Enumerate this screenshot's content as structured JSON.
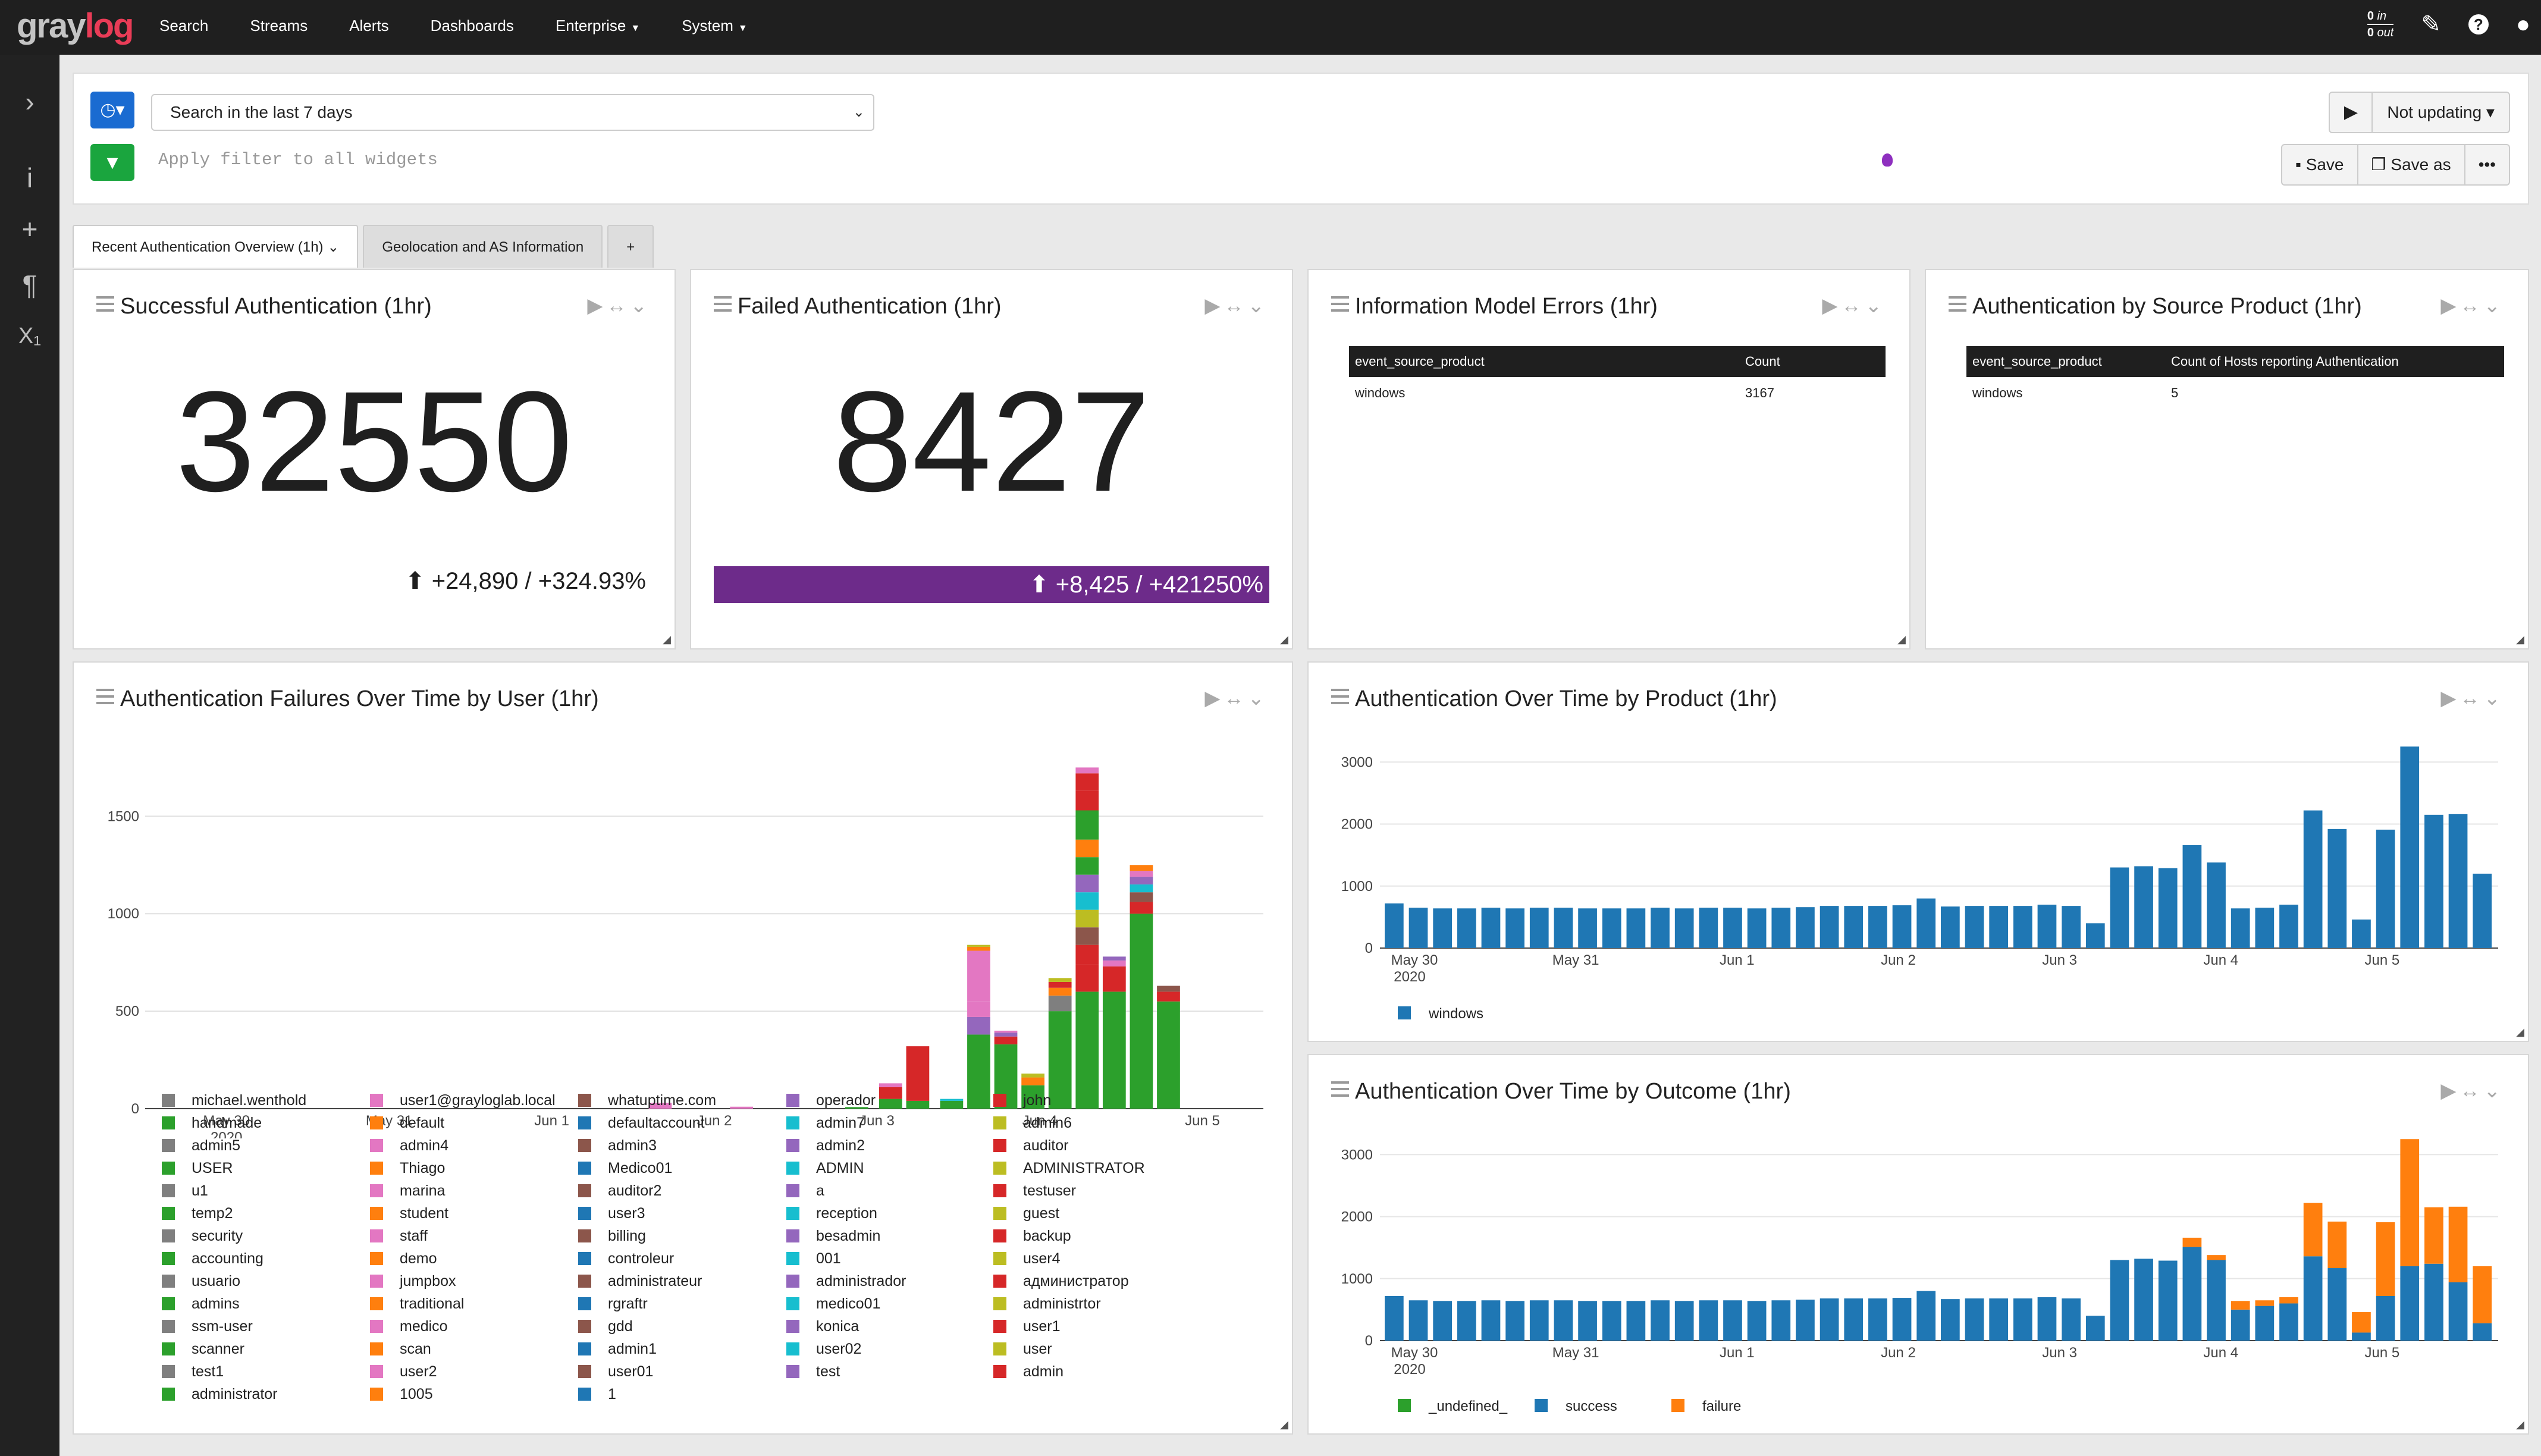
{
  "nav": {
    "logo_a": "gray",
    "logo_b": "log",
    "items": [
      "Search",
      "Streams",
      "Alerts",
      "Dashboards",
      "Enterprise",
      "System"
    ],
    "tput_in_val": "0",
    "tput_in": "in",
    "tput_out_val": "0",
    "tput_out": "out"
  },
  "search": {
    "time_range": "Search in the last 7 days",
    "filter_placeholder": "Apply filter to all widgets",
    "refresh": "Not updating",
    "save": "Save",
    "save_as": "Save as",
    "more": "•••"
  },
  "tabs": [
    "Recent Authentication Overview (1h)",
    "Geolocation and AS Information",
    "+"
  ],
  "widgets": {
    "w1": {
      "title": "Successful Authentication (1hr)",
      "value": "32550",
      "trend": "+24,890 / +324.93%"
    },
    "w2": {
      "title": "Failed Authentication (1hr)",
      "value": "8427",
      "trend": "+8,425 / +421250%"
    },
    "w3": {
      "title": "Information Model Errors (1hr)",
      "col1": "event_source_product",
      "col2": "Count",
      "r1c1": "windows",
      "r1c2": "3167"
    },
    "w4": {
      "title": "Authentication by Source Product (1hr)",
      "col1": "event_source_product",
      "col2": "Count of Hosts reporting Authentication",
      "r1c1": "windows",
      "r1c2": "5"
    },
    "w5": {
      "title": "Authentication Failures Over Time by User (1hr)"
    },
    "w6": {
      "title": "Authentication Over Time by Product (1hr)"
    },
    "w7": {
      "title": "Authentication Over Time by Outcome (1hr)"
    }
  },
  "chart_data": [
    {
      "type": "bar",
      "title": "Authentication Failures Over Time by User (1hr)",
      "x_ticks": [
        "May 30",
        "May 31",
        "Jun 1",
        "Jun 2",
        "Jun 3",
        "Jun 4",
        "Jun 5"
      ],
      "x_year": "2020",
      "y_ticks": [
        "0",
        "500",
        "1000",
        "1500"
      ],
      "ylim": [
        0,
        1800
      ],
      "stacks": [
        {
          "x": 152,
          "segs": [
            [
              1,
              30,
              "#e377c2"
            ]
          ]
        },
        {
          "x": 176,
          "segs": [
            [
              1,
              10,
              "#e377c2"
            ]
          ]
        },
        {
          "x": 210,
          "segs": [
            [
              1,
              8,
              "#2ca02c"
            ]
          ]
        },
        {
          "x": 220,
          "segs": [
            [
              1,
              50,
              "#2ca02c"
            ],
            [
              1,
              60,
              "#d62728"
            ],
            [
              1,
              20,
              "#e377c2"
            ]
          ]
        },
        {
          "x": 228,
          "segs": [
            [
              1,
              40,
              "#2ca02c"
            ],
            [
              1,
              280,
              "#d62728"
            ]
          ]
        },
        {
          "x": 238,
          "segs": [
            [
              1,
              40,
              "#2ca02c"
            ],
            [
              1,
              10,
              "#17becf"
            ]
          ]
        },
        {
          "x": 246,
          "segs": [
            [
              1,
              380,
              "#2ca02c"
            ],
            [
              1,
              90,
              "#9467bd"
            ],
            [
              1,
              80,
              "#e377c2"
            ],
            [
              1,
              260,
              "#e377c2"
            ],
            [
              1,
              20,
              "#ff7f0e"
            ],
            [
              1,
              10,
              "#bcbd22"
            ]
          ]
        },
        {
          "x": 254,
          "segs": [
            [
              1,
              330,
              "#2ca02c"
            ],
            [
              1,
              40,
              "#d62728"
            ],
            [
              1,
              20,
              "#9467bd"
            ],
            [
              1,
              10,
              "#e377c2"
            ]
          ]
        },
        {
          "x": 262,
          "segs": [
            [
              1,
              120,
              "#2ca02c"
            ],
            [
              1,
              40,
              "#ff7f0e"
            ],
            [
              1,
              20,
              "#bcbd22"
            ]
          ]
        },
        {
          "x": 270,
          "segs": [
            [
              1,
              500,
              "#2ca02c"
            ],
            [
              1,
              80,
              "#7f7f7f"
            ],
            [
              1,
              40,
              "#ff7f0e"
            ],
            [
              1,
              30,
              "#d62728"
            ],
            [
              1,
              20,
              "#bcbd22"
            ]
          ]
        },
        {
          "x": 278,
          "segs": [
            [
              1,
              600,
              "#2ca02c"
            ],
            [
              1,
              140,
              "#d62728"
            ],
            [
              1,
              100,
              "#d62728"
            ],
            [
              1,
              90,
              "#8c564b"
            ],
            [
              1,
              90,
              "#bcbd22"
            ],
            [
              1,
              90,
              "#17becf"
            ],
            [
              1,
              90,
              "#9467bd"
            ],
            [
              1,
              90,
              "#2ca02c"
            ],
            [
              1,
              90,
              "#ff7f0e"
            ],
            [
              1,
              150,
              "#2ca02c"
            ],
            [
              1,
              100,
              "#d62728"
            ],
            [
              1,
              90,
              "#d62728"
            ],
            [
              1,
              30,
              "#e377c2"
            ]
          ]
        },
        {
          "x": 286,
          "segs": [
            [
              1,
              600,
              "#2ca02c"
            ],
            [
              1,
              130,
              "#d62728"
            ],
            [
              1,
              30,
              "#e377c2"
            ],
            [
              1,
              20,
              "#9467bd"
            ]
          ]
        },
        {
          "x": 294,
          "segs": [
            [
              1,
              1000,
              "#2ca02c"
            ],
            [
              1,
              60,
              "#d62728"
            ],
            [
              1,
              50,
              "#8c564b"
            ],
            [
              1,
              40,
              "#17becf"
            ],
            [
              1,
              40,
              "#9467bd"
            ],
            [
              1,
              30,
              "#e377c2"
            ],
            [
              1,
              30,
              "#ff7f0e"
            ]
          ]
        },
        {
          "x": 302,
          "segs": [
            [
              1,
              550,
              "#2ca02c"
            ],
            [
              1,
              50,
              "#d62728"
            ],
            [
              1,
              30,
              "#8c564b"
            ]
          ]
        }
      ],
      "legend": [
        [
          "michael.wenthold",
          "#7f7f7f"
        ],
        [
          "handmade",
          "#2ca02c"
        ],
        [
          "admin5",
          "#7f7f7f"
        ],
        [
          "USER",
          "#2ca02c"
        ],
        [
          "u1",
          "#7f7f7f"
        ],
        [
          "temp2",
          "#2ca02c"
        ],
        [
          "security",
          "#7f7f7f"
        ],
        [
          "accounting",
          "#2ca02c"
        ],
        [
          "usuario",
          "#7f7f7f"
        ],
        [
          "admins",
          "#2ca02c"
        ],
        [
          "ssm-user",
          "#7f7f7f"
        ],
        [
          "scanner",
          "#2ca02c"
        ],
        [
          "test1",
          "#7f7f7f"
        ],
        [
          "administrator",
          "#2ca02c"
        ],
        [
          "user1@grayloglab.local",
          "#e377c2"
        ],
        [
          "default",
          "#ff7f0e"
        ],
        [
          "admin4",
          "#e377c2"
        ],
        [
          "Thiago",
          "#ff7f0e"
        ],
        [
          "marina",
          "#e377c2"
        ],
        [
          "student",
          "#ff7f0e"
        ],
        [
          "staff",
          "#e377c2"
        ],
        [
          "demo",
          "#ff7f0e"
        ],
        [
          "jumpbox",
          "#e377c2"
        ],
        [
          "traditional",
          "#ff7f0e"
        ],
        [
          "medico",
          "#e377c2"
        ],
        [
          "scan",
          "#ff7f0e"
        ],
        [
          "user2",
          "#e377c2"
        ],
        [
          "1005",
          "#ff7f0e"
        ],
        [
          "whatuptime.com",
          "#8c564b"
        ],
        [
          "defaultaccount",
          "#1f77b4"
        ],
        [
          "admin3",
          "#8c564b"
        ],
        [
          "Medico01",
          "#1f77b4"
        ],
        [
          "auditor2",
          "#8c564b"
        ],
        [
          "user3",
          "#1f77b4"
        ],
        [
          "billing",
          "#8c564b"
        ],
        [
          "controleur",
          "#1f77b4"
        ],
        [
          "administrateur",
          "#8c564b"
        ],
        [
          "rgraftr",
          "#1f77b4"
        ],
        [
          "gdd",
          "#8c564b"
        ],
        [
          "admin1",
          "#1f77b4"
        ],
        [
          "user01",
          "#8c564b"
        ],
        [
          "1",
          "#1f77b4"
        ],
        [
          "operador",
          "#9467bd"
        ],
        [
          "admin7",
          "#17becf"
        ],
        [
          "admin2",
          "#9467bd"
        ],
        [
          "ADMIN",
          "#17becf"
        ],
        [
          "a",
          "#9467bd"
        ],
        [
          "reception",
          "#17becf"
        ],
        [
          "besadmin",
          "#9467bd"
        ],
        [
          "001",
          "#17becf"
        ],
        [
          "administrador",
          "#9467bd"
        ],
        [
          "medico01",
          "#17becf"
        ],
        [
          "konica",
          "#9467bd"
        ],
        [
          "user02",
          "#17becf"
        ],
        [
          "test",
          "#9467bd"
        ],
        [
          "john",
          "#d62728"
        ],
        [
          "admin6",
          "#bcbd22"
        ],
        [
          "auditor",
          "#d62728"
        ],
        [
          "ADMINISTRATOR",
          "#bcbd22"
        ],
        [
          "testuser",
          "#d62728"
        ],
        [
          "guest",
          "#bcbd22"
        ],
        [
          "backup",
          "#d62728"
        ],
        [
          "user4",
          "#bcbd22"
        ],
        [
          "администратор",
          "#d62728"
        ],
        [
          "administrtor",
          "#bcbd22"
        ],
        [
          "user1",
          "#d62728"
        ],
        [
          "user",
          "#bcbd22"
        ],
        [
          "admin",
          "#d62728"
        ]
      ]
    },
    {
      "type": "bar",
      "title": "Authentication Over Time by Product (1hr)",
      "x_ticks": [
        "May 30",
        "May 31",
        "Jun 1",
        "Jun 2",
        "Jun 3",
        "Jun 4",
        "Jun 5"
      ],
      "x_year": "2020",
      "y_ticks": [
        "0",
        "1000",
        "2000",
        "3000"
      ],
      "ylim": [
        0,
        3300
      ],
      "series": [
        {
          "name": "windows",
          "color": "#1f77b4",
          "values": [
            720,
            650,
            640,
            640,
            650,
            640,
            650,
            650,
            640,
            640,
            640,
            650,
            640,
            650,
            650,
            640,
            650,
            660,
            680,
            680,
            680,
            690,
            800,
            670,
            680,
            680,
            680,
            700,
            680,
            400,
            1300,
            1320,
            1290,
            1660,
            1380,
            640,
            650,
            700,
            2220,
            1920,
            460,
            1910,
            3250,
            2150,
            2160,
            1200
          ]
        }
      ]
    },
    {
      "type": "bar",
      "title": "Authentication Over Time by Outcome (1hr)",
      "x_ticks": [
        "May 30",
        "May 31",
        "Jun 1",
        "Jun 2",
        "Jun 3",
        "Jun 4",
        "Jun 5"
      ],
      "x_year": "2020",
      "y_ticks": [
        "0",
        "1000",
        "2000",
        "3000"
      ],
      "ylim": [
        0,
        3300
      ],
      "series": [
        {
          "name": "_undefined_",
          "color": "#2ca02c",
          "values": [
            0,
            0,
            0,
            0,
            0,
            0,
            0,
            0,
            0,
            0,
            0,
            0,
            0,
            0,
            0,
            0,
            0,
            0,
            0,
            0,
            0,
            0,
            0,
            0,
            0,
            0,
            0,
            0,
            0,
            0,
            0,
            0,
            0,
            0,
            0,
            0,
            0,
            0,
            0,
            0,
            0,
            0,
            0,
            0,
            0,
            0
          ]
        },
        {
          "name": "success",
          "color": "#1f77b4",
          "values": [
            720,
            650,
            640,
            640,
            650,
            640,
            650,
            650,
            640,
            640,
            640,
            650,
            640,
            650,
            650,
            640,
            650,
            660,
            680,
            680,
            680,
            690,
            800,
            670,
            680,
            680,
            680,
            700,
            680,
            400,
            1300,
            1320,
            1290,
            1510,
            1300,
            500,
            560,
            600,
            1360,
            1170,
            130,
            720,
            1200,
            1240,
            940,
            280
          ]
        },
        {
          "name": "failure",
          "color": "#ff7f0e",
          "values": [
            0,
            0,
            0,
            0,
            0,
            0,
            0,
            0,
            0,
            0,
            0,
            0,
            0,
            0,
            0,
            0,
            0,
            0,
            0,
            0,
            0,
            0,
            0,
            0,
            0,
            0,
            0,
            0,
            0,
            0,
            0,
            0,
            0,
            150,
            80,
            140,
            90,
            100,
            860,
            750,
            330,
            1190,
            2050,
            910,
            1220,
            920
          ]
        }
      ]
    }
  ]
}
